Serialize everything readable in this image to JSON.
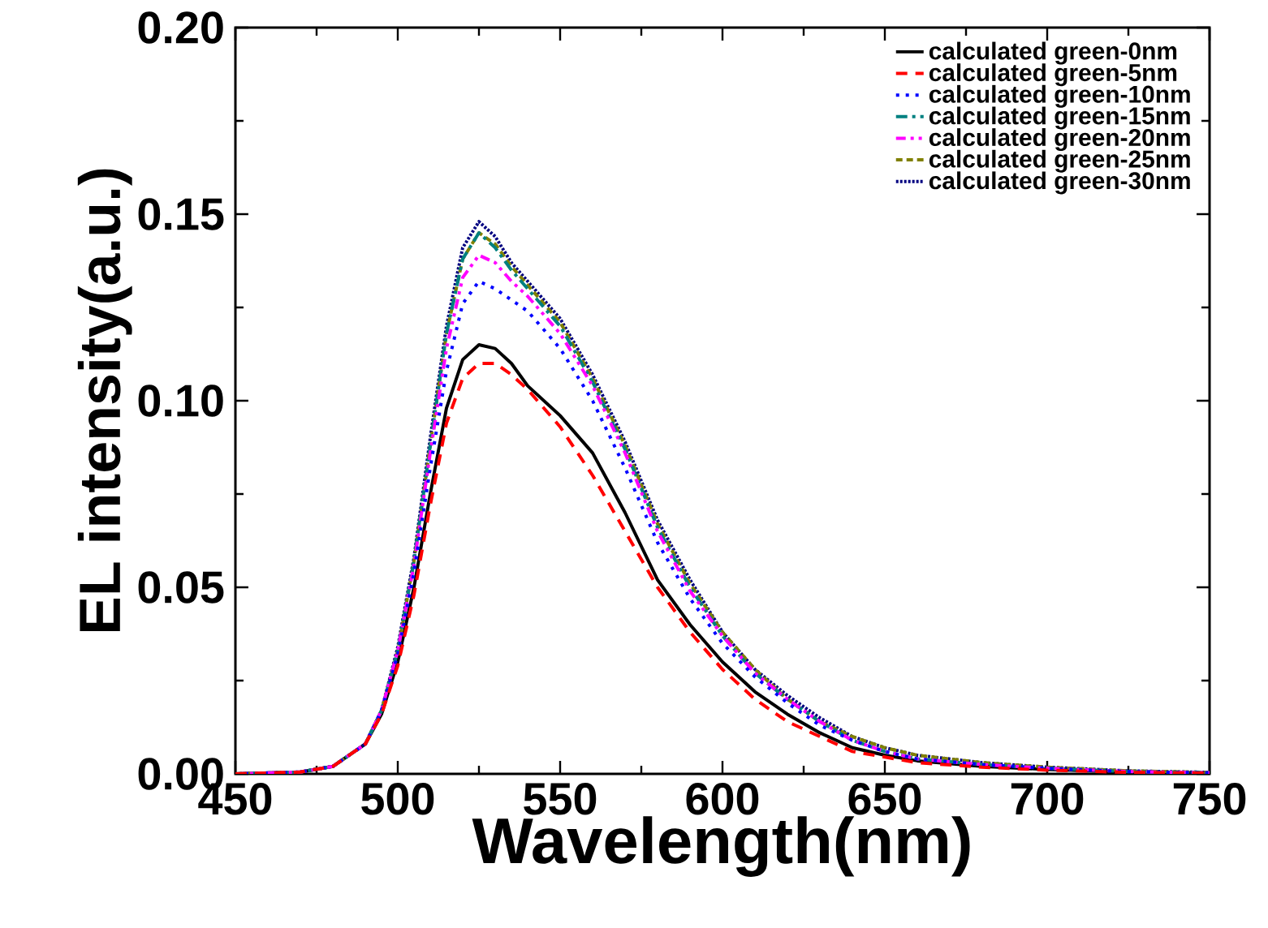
{
  "chart_data": {
    "type": "line",
    "xlabel": "Wavelength(nm)",
    "ylabel": "EL intensity(a.u.)",
    "x": [
      450,
      470,
      480,
      490,
      495,
      500,
      505,
      510,
      515,
      520,
      525,
      530,
      535,
      540,
      550,
      560,
      570,
      580,
      590,
      600,
      610,
      620,
      630,
      640,
      650,
      660,
      680,
      700,
      725,
      750
    ],
    "series": [
      {
        "name": "calculated green-0nm",
        "color": "#000000",
        "line_style": "solid",
        "values": [
          0,
          0.0005,
          0.002,
          0.008,
          0.016,
          0.03,
          0.05,
          0.075,
          0.098,
          0.111,
          0.115,
          0.114,
          0.11,
          0.104,
          0.096,
          0.086,
          0.07,
          0.052,
          0.04,
          0.03,
          0.022,
          0.016,
          0.011,
          0.007,
          0.005,
          0.0035,
          0.002,
          0.0012,
          0.0005,
          0.0002
        ]
      },
      {
        "name": "calculated green-5nm",
        "color": "#ff0000",
        "line_style": "dashed",
        "values": [
          0,
          0.0005,
          0.002,
          0.008,
          0.016,
          0.029,
          0.048,
          0.072,
          0.094,
          0.106,
          0.11,
          0.11,
          0.107,
          0.103,
          0.093,
          0.08,
          0.065,
          0.05,
          0.038,
          0.028,
          0.02,
          0.014,
          0.01,
          0.006,
          0.0045,
          0.003,
          0.0018,
          0.001,
          0.0004,
          0.0002
        ]
      },
      {
        "name": "calculated green-10nm",
        "color": "#0000ff",
        "line_style": "dotted",
        "values": [
          0,
          0.0005,
          0.002,
          0.008,
          0.017,
          0.032,
          0.054,
          0.082,
          0.108,
          0.126,
          0.132,
          0.13,
          0.127,
          0.124,
          0.114,
          0.1,
          0.082,
          0.062,
          0.047,
          0.035,
          0.026,
          0.019,
          0.013,
          0.009,
          0.006,
          0.004,
          0.0025,
          0.0015,
          0.0006,
          0.0003
        ]
      },
      {
        "name": "calculated green-15nm",
        "color": "#008080",
        "line_style": "dashdot",
        "values": [
          0,
          0.0005,
          0.002,
          0.008,
          0.017,
          0.033,
          0.057,
          0.088,
          0.118,
          0.138,
          0.145,
          0.141,
          0.135,
          0.13,
          0.12,
          0.105,
          0.087,
          0.066,
          0.05,
          0.037,
          0.027,
          0.02,
          0.014,
          0.009,
          0.006,
          0.004,
          0.0025,
          0.0015,
          0.0006,
          0.0003
        ]
      },
      {
        "name": "calculated green-20nm",
        "color": "#ff00ff",
        "line_style": "dashdotdot",
        "values": [
          0,
          0.0005,
          0.002,
          0.008,
          0.017,
          0.033,
          0.056,
          0.086,
          0.114,
          0.133,
          0.139,
          0.137,
          0.132,
          0.128,
          0.118,
          0.104,
          0.086,
          0.065,
          0.049,
          0.037,
          0.027,
          0.02,
          0.014,
          0.009,
          0.006,
          0.004,
          0.0025,
          0.0015,
          0.0006,
          0.0003
        ]
      },
      {
        "name": "calculated green-25nm",
        "color": "#808000",
        "line_style": "shortdashed",
        "values": [
          0,
          0.0005,
          0.002,
          0.008,
          0.017,
          0.033,
          0.057,
          0.088,
          0.118,
          0.138,
          0.145,
          0.142,
          0.136,
          0.131,
          0.121,
          0.106,
          0.088,
          0.067,
          0.051,
          0.038,
          0.028,
          0.02,
          0.014,
          0.01,
          0.007,
          0.005,
          0.003,
          0.0018,
          0.0008,
          0.0004
        ]
      },
      {
        "name": "calculated green-30nm",
        "color": "#000080",
        "line_style": "densedotted",
        "values": [
          0,
          0.0005,
          0.002,
          0.008,
          0.017,
          0.034,
          0.058,
          0.09,
          0.12,
          0.141,
          0.148,
          0.144,
          0.137,
          0.132,
          0.122,
          0.107,
          0.089,
          0.068,
          0.052,
          0.038,
          0.028,
          0.021,
          0.015,
          0.01,
          0.007,
          0.005,
          0.003,
          0.0018,
          0.0008,
          0.0004
        ]
      }
    ],
    "xlim": [
      450,
      750
    ],
    "xticks": [
      450,
      500,
      550,
      600,
      650,
      700,
      750
    ],
    "ylim": [
      0,
      0.2
    ],
    "yticks": [
      {
        "value": 0,
        "label": "0.00"
      },
      {
        "value": 0.05,
        "label": "0.05"
      },
      {
        "value": 0.1,
        "label": "0.10"
      },
      {
        "value": 0.15,
        "label": "0.15"
      },
      {
        "value": 0.2,
        "label": "0.20"
      }
    ],
    "legend": "top right",
    "grid": false,
    "marker": "none"
  }
}
